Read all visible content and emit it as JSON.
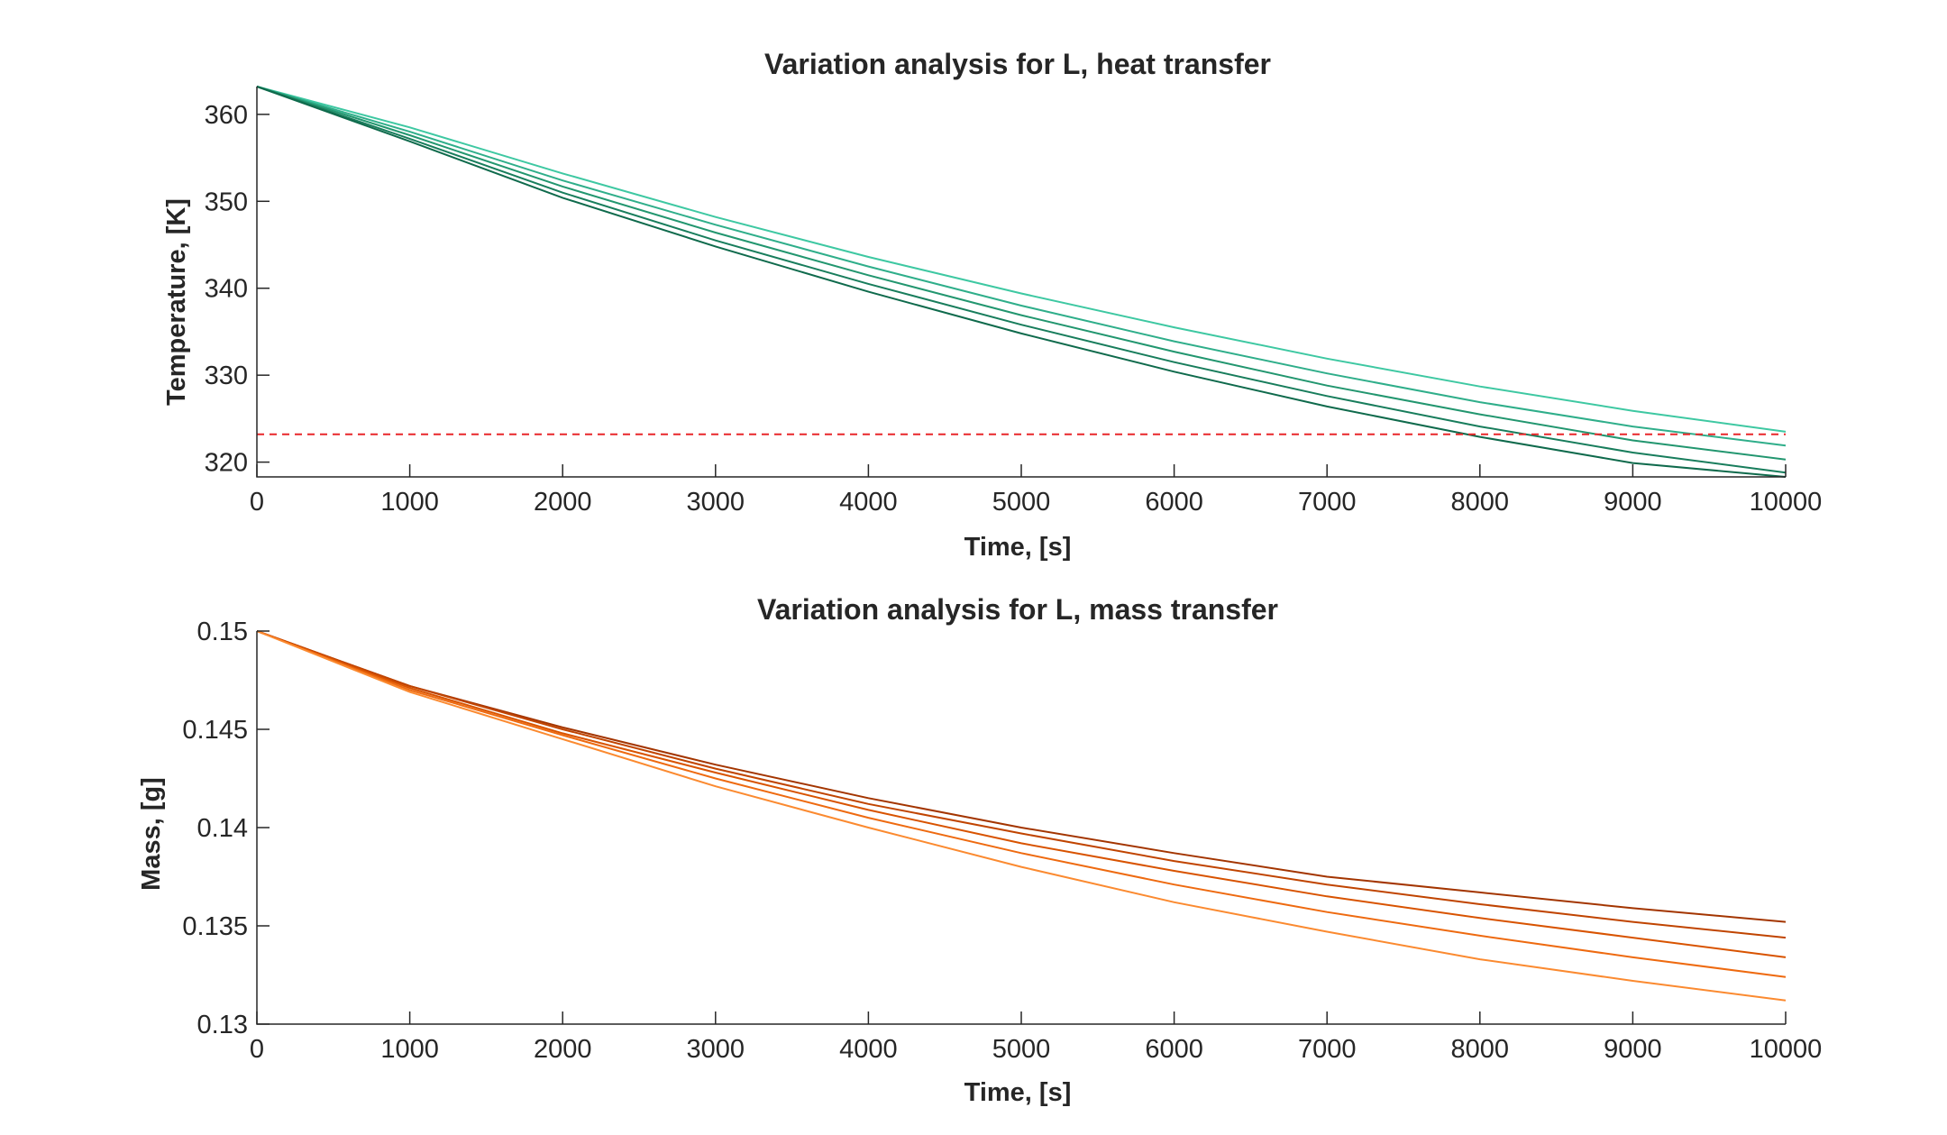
{
  "chart_data": [
    {
      "type": "line",
      "title": "Variation analysis for L, heat transfer",
      "xlabel": "Time, [s]",
      "ylabel": "Temperature, [K]",
      "xlim": [
        0,
        10000
      ],
      "ylim": [
        318.3,
        363.2
      ],
      "xticks": [
        0,
        1000,
        2000,
        3000,
        4000,
        5000,
        6000,
        7000,
        8000,
        9000,
        10000
      ],
      "xtick_labels": [
        "0",
        "1000",
        "2000",
        "3000",
        "4000",
        "5000",
        "6000",
        "7000",
        "8000",
        "9000",
        "10000"
      ],
      "yticks": [
        320,
        330,
        340,
        350,
        360
      ],
      "ytick_labels": [
        "320",
        "330",
        "340",
        "350",
        "360"
      ],
      "grid": false,
      "x": [
        0,
        1000,
        2000,
        3000,
        4000,
        5000,
        6000,
        7000,
        8000,
        9000,
        10000
      ],
      "series": [
        {
          "color": "#3ec8a2",
          "values": [
            363.2,
            358.5,
            353.2,
            348.2,
            343.6,
            339.4,
            335.5,
            331.9,
            328.7,
            325.9,
            323.5
          ]
        },
        {
          "color": "#2fae8a",
          "values": [
            363.2,
            358.0,
            352.4,
            347.3,
            342.5,
            338.0,
            333.9,
            330.2,
            326.9,
            324.1,
            321.9
          ]
        },
        {
          "color": "#22966f",
          "values": [
            363.2,
            357.6,
            351.7,
            346.4,
            341.5,
            336.9,
            332.7,
            328.8,
            325.5,
            322.5,
            320.3
          ]
        },
        {
          "color": "#187d5c",
          "values": [
            363.2,
            357.2,
            351.0,
            345.5,
            340.5,
            335.8,
            331.5,
            327.6,
            324.1,
            321.1,
            318.8
          ]
        },
        {
          "color": "#0f6a4c",
          "values": [
            363.2,
            356.9,
            350.4,
            344.8,
            339.6,
            334.8,
            330.4,
            326.4,
            322.9,
            319.9,
            318.3
          ]
        }
      ],
      "reference_line": {
        "y": 323.2,
        "color": "#e8272a",
        "style": "dashed"
      }
    },
    {
      "type": "line",
      "title": "Variation analysis for L, mass transfer",
      "xlabel": "Time, [s]",
      "ylabel": "Mass, [g]",
      "xlim": [
        0,
        10000
      ],
      "ylim": [
        0.13,
        0.15
      ],
      "xticks": [
        0,
        1000,
        2000,
        3000,
        4000,
        5000,
        6000,
        7000,
        8000,
        9000,
        10000
      ],
      "xtick_labels": [
        "0",
        "1000",
        "2000",
        "3000",
        "4000",
        "5000",
        "6000",
        "7000",
        "8000",
        "9000",
        "10000"
      ],
      "yticks": [
        0.13,
        0.135,
        0.14,
        0.145,
        0.15
      ],
      "ytick_labels": [
        "0.13",
        "0.135",
        "0.14",
        "0.145",
        "0.15"
      ],
      "grid": false,
      "x": [
        0,
        1000,
        2000,
        3000,
        4000,
        5000,
        6000,
        7000,
        8000,
        9000,
        10000
      ],
      "series": [
        {
          "color": "#a33500",
          "values": [
            0.15,
            0.1472,
            0.1451,
            0.1432,
            0.1415,
            0.14,
            0.1387,
            0.1375,
            0.1367,
            0.1359,
            0.1352
          ]
        },
        {
          "color": "#c04400",
          "values": [
            0.15,
            0.1472,
            0.145,
            0.143,
            0.1412,
            0.1397,
            0.1383,
            0.1371,
            0.1361,
            0.1352,
            0.1344
          ]
        },
        {
          "color": "#d85300",
          "values": [
            0.15,
            0.1471,
            0.1448,
            0.1428,
            0.1409,
            0.1392,
            0.1378,
            0.1365,
            0.1354,
            0.1344,
            0.1334
          ]
        },
        {
          "color": "#ee6a10",
          "values": [
            0.15,
            0.147,
            0.1447,
            0.1425,
            0.1405,
            0.1387,
            0.1371,
            0.1357,
            0.1345,
            0.1334,
            0.1324
          ]
        },
        {
          "color": "#fb8a30",
          "values": [
            0.15,
            0.1469,
            0.1445,
            0.1421,
            0.14,
            0.138,
            0.1362,
            0.1347,
            0.1333,
            0.1322,
            0.1312
          ]
        }
      ]
    }
  ]
}
